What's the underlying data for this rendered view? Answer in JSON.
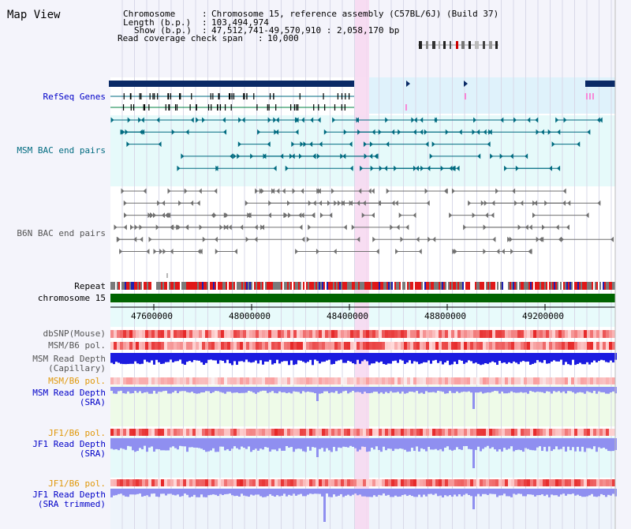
{
  "title": "Map View",
  "info": {
    "chromosome_key": "Chromosome",
    "chromosome_val": "Chromosome 15, reference assembly (C57BL/6J) (Build 37)",
    "length_key": "Length (b.p.)",
    "length_val": "103,494,974",
    "show_key": "Show (b.p.)",
    "show_val": "47,512,741-49,570,910 : 2,058,170 bp",
    "coverage_key": "Read coverage check span",
    "coverage_val": "10,000"
  },
  "tracks": {
    "refseq": "RefSeq Genes",
    "msm_bac": "MSM BAC end pairs",
    "b6n_bac": "B6N BAC end pairs",
    "repeat": "Repeat",
    "chromosome": "chromosome 15",
    "dbsnp": "dbSNP(Mouse)",
    "msm_b6_pol": "MSM/B6 pol.",
    "msm_depth_cap_1": "MSM Read Depth",
    "msm_depth_cap_2": "(Capillary)",
    "msm_b6_pol_2": "MSM/B6 pol.",
    "msm_depth_sra_1": "MSM Read Depth",
    "msm_depth_sra_2": "(SRA)",
    "jf1_b6_pol": "JF1/B6 pol.",
    "jf1_depth_sra_1": "JF1 Read Depth",
    "jf1_depth_sra_2": "(SRA)",
    "jf1_b6_pol_2": "JF1/B6 pol.",
    "jf1_depth_trim_1": "JF1 Read Depth",
    "jf1_depth_trim_2": "(SRA trimmed)"
  },
  "axis_ticks": [
    "47600000",
    "48000000",
    "48400000",
    "48800000",
    "49200000"
  ],
  "colors": {
    "refseq_bar": "#0a2a66",
    "msm_band": "#e6fafa",
    "highlight": "#f7d7f0",
    "chromosome_bar": "#006400",
    "depth_blue": "#1c1ce0",
    "depth_light": "#8f8ff0",
    "pol_red": "#f06060"
  }
}
